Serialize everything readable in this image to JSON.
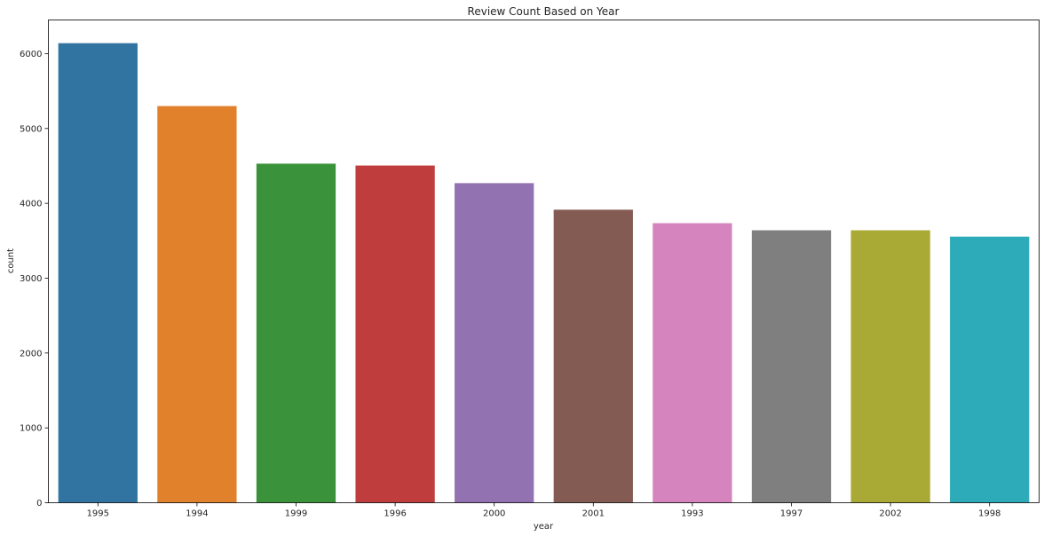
{
  "chart_data": {
    "type": "bar",
    "title": "Review Count Based on Year",
    "xlabel": "year",
    "ylabel": "count",
    "categories": [
      "1995",
      "1994",
      "1999",
      "1996",
      "2000",
      "2001",
      "1993",
      "1997",
      "2002",
      "1998"
    ],
    "values": [
      6140,
      5300,
      4530,
      4505,
      4270,
      3915,
      3735,
      3640,
      3640,
      3555
    ],
    "colors": [
      "#3274a1",
      "#e1812c",
      "#3a923a",
      "#c03d3e",
      "#9372b2",
      "#845b53",
      "#d684bd",
      "#7f7f7f",
      "#a9aa35",
      "#2eabb8"
    ],
    "ylim": [
      0,
      6450
    ],
    "yticks": [
      0,
      1000,
      2000,
      3000,
      4000,
      5000,
      6000
    ],
    "grid": false,
    "legend": "none"
  }
}
